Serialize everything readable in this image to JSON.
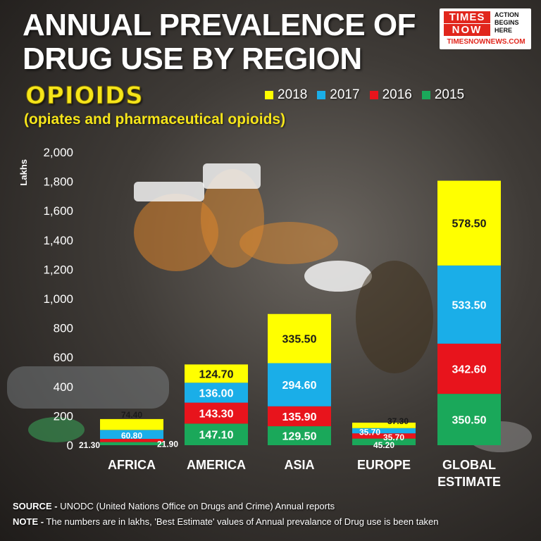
{
  "header": {
    "title_line1": "ANNUAL PREVALENCE OF",
    "title_line2": "DRUG USE BY REGION",
    "subtitle": "OPIOIDS",
    "subnote": "(opiates and pharmaceutical opioids)"
  },
  "logo": {
    "times": "TIMES",
    "now": "NOW",
    "tagline_1": "ACTION",
    "tagline_2": "BEGINS",
    "tagline_3": "HERE",
    "site": "TIMESNOWNEWS.COM"
  },
  "colors": {
    "2018": "#ffff00",
    "2017": "#1aaee8",
    "2016": "#e8141c",
    "2015": "#1aa85a"
  },
  "chart_data": {
    "type": "bar",
    "stacked": true,
    "title": "ANNUAL PREVALENCE OF DRUG USE BY REGION",
    "subtitle": "OPIOIDS (opiates and pharmaceutical opioids)",
    "ylabel": "Lakhs",
    "ylim": [
      0,
      2000
    ],
    "yticks": [
      0,
      200,
      400,
      600,
      800,
      1000,
      1200,
      1400,
      1600,
      1800,
      2000
    ],
    "ytick_labels": [
      "0",
      "200",
      "400",
      "600",
      "800",
      "1,000",
      "1,200",
      "1,400",
      "1,600",
      "1,800",
      "2,000"
    ],
    "categories": [
      "AFRICA",
      "AMERICA",
      "ASIA",
      "EUROPE",
      "GLOBAL ESTIMATE"
    ],
    "legend_order": [
      "2018",
      "2017",
      "2016",
      "2015"
    ],
    "legend_position": "top-right",
    "series": [
      {
        "name": "2015",
        "values": [
          21.3,
          147.1,
          129.5,
          45.2,
          350.5
        ],
        "labels": [
          "21.30",
          "147.10",
          "129.50",
          "45.20",
          "350.50"
        ]
      },
      {
        "name": "2016",
        "values": [
          21.9,
          143.3,
          135.9,
          35.7,
          342.6
        ],
        "labels": [
          "21.90",
          "143.30",
          "135.90",
          "35.70",
          "342.60"
        ]
      },
      {
        "name": "2017",
        "values": [
          60.8,
          136.0,
          294.6,
          35.7,
          533.5
        ],
        "labels": [
          "60.80",
          "136.00",
          "294.60",
          "35.70",
          "533.50"
        ]
      },
      {
        "name": "2018",
        "values": [
          74.4,
          124.7,
          335.5,
          37.3,
          578.5
        ],
        "labels": [
          "74.40",
          "124.70",
          "335.50",
          "37.30",
          "578.50"
        ]
      }
    ]
  },
  "footer": {
    "source_key": "SOURCE -",
    "source_text": "UNODC (United Nations Office on Drugs and Crime) Annual reports",
    "note_key": "NOTE -",
    "note_text": "The numbers are in lakhs, 'Best Estimate' values of Annual prevalance of Drug use is been taken"
  }
}
